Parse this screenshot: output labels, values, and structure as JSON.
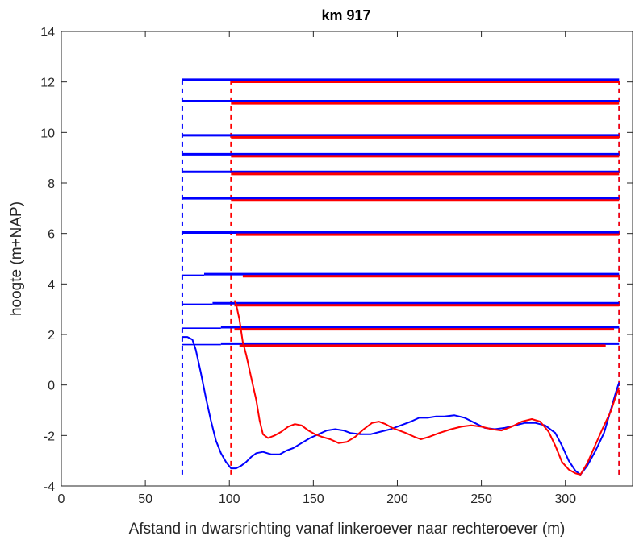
{
  "chart_data": {
    "type": "line",
    "title": "km 917",
    "xlabel": "Afstand in dwarsrichting vanaf linkeroever naar rechteroever (m)",
    "ylabel": "hoogte (m+NAP)",
    "xlim": [
      0,
      340
    ],
    "ylim": [
      -4,
      14
    ],
    "xticks": [
      "0",
      "50",
      "100",
      "150",
      "200",
      "250",
      "300"
    ],
    "yticks": [
      "-4",
      "-2",
      "0",
      "2",
      "4",
      "6",
      "8",
      "10",
      "12",
      "14"
    ],
    "grid": false,
    "colors": {
      "blue": "#0000ff",
      "red": "#ff0000",
      "axis": "#262626"
    },
    "series": [
      {
        "color": "#0000ff",
        "points": [
          [
            72,
            1.9
          ],
          [
            75,
            1.9
          ],
          [
            78,
            1.8
          ],
          [
            80,
            1.4
          ],
          [
            83,
            0.5
          ],
          [
            86,
            -0.5
          ],
          [
            89,
            -1.4
          ],
          [
            92,
            -2.2
          ],
          [
            95,
            -2.7
          ],
          [
            98,
            -3.05
          ],
          [
            101,
            -3.3
          ],
          [
            104,
            -3.3
          ],
          [
            107,
            -3.2
          ],
          [
            110,
            -3.05
          ],
          [
            113,
            -2.85
          ],
          [
            116,
            -2.7
          ],
          [
            120,
            -2.65
          ],
          [
            125,
            -2.75
          ],
          [
            130,
            -2.75
          ],
          [
            134,
            -2.6
          ],
          [
            138,
            -2.5
          ],
          [
            143,
            -2.3
          ],
          [
            148,
            -2.1
          ],
          [
            153,
            -1.95
          ],
          [
            158,
            -1.8
          ],
          [
            163,
            -1.75
          ],
          [
            168,
            -1.8
          ],
          [
            172,
            -1.9
          ],
          [
            178,
            -1.95
          ],
          [
            184,
            -1.95
          ],
          [
            190,
            -1.85
          ],
          [
            196,
            -1.75
          ],
          [
            202,
            -1.6
          ],
          [
            208,
            -1.45
          ],
          [
            213,
            -1.3
          ],
          [
            218,
            -1.3
          ],
          [
            223,
            -1.25
          ],
          [
            228,
            -1.25
          ],
          [
            234,
            -1.2
          ],
          [
            240,
            -1.3
          ],
          [
            246,
            -1.5
          ],
          [
            252,
            -1.7
          ],
          [
            258,
            -1.75
          ],
          [
            264,
            -1.7
          ],
          [
            270,
            -1.6
          ],
          [
            276,
            -1.5
          ],
          [
            282,
            -1.5
          ],
          [
            288,
            -1.6
          ],
          [
            294,
            -1.9
          ],
          [
            298,
            -2.4
          ],
          [
            302,
            -3.0
          ],
          [
            306,
            -3.4
          ],
          [
            309,
            -3.55
          ],
          [
            313,
            -3.2
          ],
          [
            318,
            -2.6
          ],
          [
            323,
            -1.9
          ],
          [
            327,
            -1.0
          ],
          [
            330,
            -0.3
          ],
          [
            332,
            0.1
          ]
        ]
      },
      {
        "color": "#ff0000",
        "points": [
          [
            103,
            3.35
          ],
          [
            104,
            3.2
          ],
          [
            106,
            2.6
          ],
          [
            108,
            1.7
          ],
          [
            110,
            1.2
          ],
          [
            113,
            0.3
          ],
          [
            116,
            -0.6
          ],
          [
            118,
            -1.4
          ],
          [
            120,
            -1.95
          ],
          [
            123,
            -2.1
          ],
          [
            127,
            -2.0
          ],
          [
            131,
            -1.85
          ],
          [
            135,
            -1.65
          ],
          [
            139,
            -1.55
          ],
          [
            143,
            -1.6
          ],
          [
            147,
            -1.8
          ],
          [
            151,
            -1.95
          ],
          [
            155,
            -2.05
          ],
          [
            160,
            -2.15
          ],
          [
            165,
            -2.3
          ],
          [
            170,
            -2.25
          ],
          [
            175,
            -2.05
          ],
          [
            180,
            -1.75
          ],
          [
            185,
            -1.5
          ],
          [
            189,
            -1.45
          ],
          [
            193,
            -1.55
          ],
          [
            197,
            -1.7
          ],
          [
            201,
            -1.8
          ],
          [
            205,
            -1.9
          ],
          [
            210,
            -2.05
          ],
          [
            214,
            -2.15
          ],
          [
            219,
            -2.05
          ],
          [
            225,
            -1.9
          ],
          [
            232,
            -1.75
          ],
          [
            238,
            -1.65
          ],
          [
            244,
            -1.6
          ],
          [
            250,
            -1.65
          ],
          [
            256,
            -1.75
          ],
          [
            262,
            -1.8
          ],
          [
            268,
            -1.65
          ],
          [
            274,
            -1.45
          ],
          [
            280,
            -1.35
          ],
          [
            285,
            -1.45
          ],
          [
            290,
            -1.85
          ],
          [
            294,
            -2.4
          ],
          [
            298,
            -3.05
          ],
          [
            302,
            -3.35
          ],
          [
            306,
            -3.5
          ],
          [
            309,
            -3.55
          ],
          [
            313,
            -3.1
          ],
          [
            317,
            -2.5
          ],
          [
            322,
            -1.75
          ],
          [
            327,
            -1.05
          ],
          [
            330,
            -0.45
          ],
          [
            332,
            -0.1
          ]
        ]
      }
    ],
    "waterlines": [
      {
        "y": 12.05,
        "blue_thick": [
          72,
          332
        ],
        "red_thick": [
          101,
          332
        ]
      },
      {
        "y": 11.2,
        "blue_thick": [
          72,
          332
        ],
        "red_thick": [
          101,
          332
        ]
      },
      {
        "y": 9.85,
        "blue_thick": [
          72,
          332
        ],
        "red_thick": [
          101,
          332
        ]
      },
      {
        "y": 9.1,
        "blue_thick": [
          72,
          332
        ],
        "red_thick": [
          101,
          332
        ]
      },
      {
        "y": 8.4,
        "blue_thick": [
          72,
          332
        ],
        "red_thick": [
          101,
          332
        ]
      },
      {
        "y": 7.35,
        "blue_thick": [
          72,
          332
        ],
        "red_thick": [
          101,
          332
        ]
      },
      {
        "y": 6.0,
        "blue_thick": [
          72,
          332
        ],
        "red_thick": [
          104,
          332
        ]
      },
      {
        "y": 4.35,
        "blue_thin": [
          72,
          85
        ],
        "blue_thick": [
          85,
          332
        ],
        "red_thick": [
          108,
          332
        ]
      },
      {
        "y": 3.2,
        "blue_thin": [
          72,
          90
        ],
        "blue_thick": [
          90,
          332
        ],
        "red_thick": [
          103,
          332
        ]
      },
      {
        "y": 2.25,
        "blue_thin": [
          72,
          95
        ],
        "blue_thick": [
          95,
          332
        ],
        "red_thick": [
          103,
          329
        ]
      },
      {
        "y": 1.6,
        "blue_thin": [
          72,
          95
        ],
        "blue_thick": [
          95,
          332
        ],
        "red_thick": [
          106,
          324
        ]
      }
    ],
    "verticals": [
      {
        "x": 72,
        "color": "#0000ff",
        "y_range": [
          -3.55,
          12.05
        ]
      },
      {
        "x": 101,
        "color": "#ff0000",
        "y_range": [
          -3.55,
          12.05
        ]
      },
      {
        "x": 332,
        "color": "#0000ff",
        "y_range": [
          -3.55,
          12.05
        ]
      },
      {
        "x": 332,
        "color": "#ff0000",
        "y_range": [
          -3.55,
          12.05
        ]
      }
    ]
  }
}
